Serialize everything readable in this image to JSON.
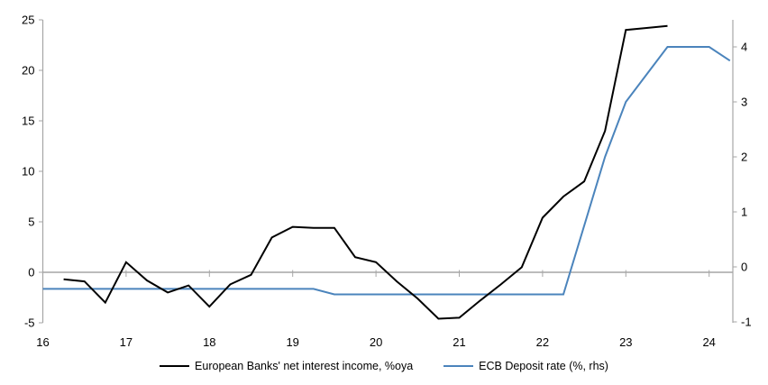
{
  "page": {
    "background": "#ffffff"
  },
  "chart_data": {
    "type": "line",
    "title": "",
    "xlabel": "",
    "ylabel_left": "",
    "ylabel_right": "",
    "grid": "zero-line-only",
    "legend_position": "bottom-center",
    "axis_color": "#a6a6a6",
    "zero_line_color": "#a6a6a6",
    "x_ticks": [
      16,
      17,
      18,
      19,
      20,
      21,
      22,
      23,
      24
    ],
    "left_axis": {
      "ticks": [
        25,
        20,
        15,
        10,
        5,
        0,
        -5
      ],
      "range": [
        -5,
        25
      ]
    },
    "right_axis": {
      "ticks": [
        4,
        3,
        2,
        1,
        0,
        -1
      ],
      "range": [
        -1.02,
        4.49
      ]
    },
    "series": [
      {
        "name": "European Banks' net interest income, %oya",
        "axis": "left",
        "color": "#000000",
        "x": [
          16.25,
          16.5,
          16.75,
          17.0,
          17.25,
          17.5,
          17.75,
          18.0,
          18.25,
          18.5,
          18.75,
          19.0,
          19.25,
          19.5,
          19.75,
          20.0,
          20.25,
          20.5,
          20.75,
          21.0,
          21.25,
          21.5,
          21.75,
          22.0,
          22.25,
          22.5,
          22.75,
          23.0,
          23.25,
          23.5
        ],
        "values": [
          -0.7,
          -0.9,
          -3.0,
          1.0,
          -0.8,
          -2.0,
          -1.3,
          -3.4,
          -1.2,
          -0.25,
          3.45,
          4.5,
          4.4,
          4.4,
          1.5,
          1.0,
          -0.9,
          -2.6,
          -4.6,
          -4.5,
          -2.8,
          -1.2,
          0.5,
          5.4,
          7.5,
          9.0,
          14.0,
          24.0,
          24.2,
          24.4
        ]
      },
      {
        "name": "ECB Deposit rate (%, rhs)",
        "axis": "right",
        "color": "#4b84bc",
        "x": [
          16.0,
          16.25,
          16.5,
          16.75,
          17.0,
          17.25,
          17.5,
          17.75,
          18.0,
          18.25,
          18.5,
          18.75,
          19.0,
          19.25,
          19.5,
          19.75,
          20.0,
          20.25,
          20.5,
          20.75,
          21.0,
          21.25,
          21.5,
          21.75,
          22.0,
          22.25,
          22.5,
          22.75,
          23.0,
          23.25,
          23.5,
          23.75,
          24.0,
          24.25
        ],
        "values": [
          -0.4,
          -0.4,
          -0.4,
          -0.4,
          -0.4,
          -0.4,
          -0.4,
          -0.4,
          -0.4,
          -0.4,
          -0.4,
          -0.4,
          -0.4,
          -0.4,
          -0.5,
          -0.5,
          -0.5,
          -0.5,
          -0.5,
          -0.5,
          -0.5,
          -0.5,
          -0.5,
          -0.5,
          -0.5,
          -0.5,
          0.75,
          2.0,
          3.0,
          3.5,
          4.0,
          4.0,
          4.0,
          3.75
        ]
      }
    ]
  },
  "legend": {
    "items": [
      {
        "label": "European Banks' net interest income, %oya"
      },
      {
        "label": "ECB Deposit rate (%, rhs)"
      }
    ]
  }
}
